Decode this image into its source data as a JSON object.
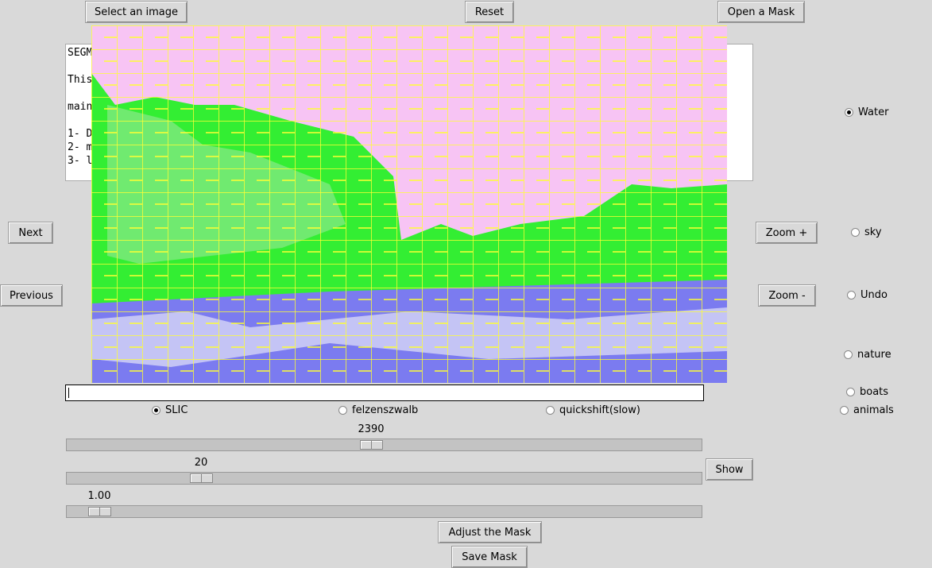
{
  "buttons": {
    "select_image": "Select an image",
    "reset": "Reset",
    "open_mask": "Open a Mask",
    "next": "Next",
    "previous": "Previous",
    "zoom_in": "Zoom +",
    "zoom_out": "Zoom -",
    "show": "Show",
    "adjust_mask": "Adjust the Mask",
    "save_mask": "Save Mask"
  },
  "text_area": {
    "lines": [
      "SEGM",
      "",
      "This",
      "",
      "main",
      "",
      "1- D",
      "2- m",
      "3- l"
    ]
  },
  "classes": {
    "options": [
      "Water",
      "sky",
      "Undo",
      "nature",
      "boats",
      "animals"
    ],
    "selected": 0
  },
  "methods": {
    "options": [
      "SLIC",
      "felzenszwalb",
      "quickshift(slow)"
    ],
    "selected": 0
  },
  "sliders": [
    "2390",
    "20",
    "1.00"
  ]
}
